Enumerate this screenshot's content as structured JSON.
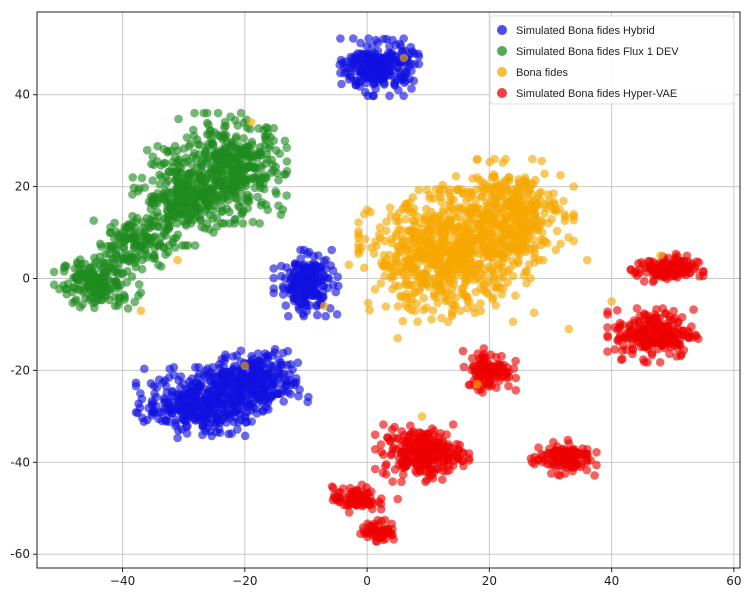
{
  "chart_data": {
    "type": "scatter",
    "title": "",
    "xlabel": "",
    "ylabel": "",
    "xlim": [
      -54,
      61
    ],
    "ylim": [
      -63,
      58
    ],
    "xticks": [
      -40,
      -20,
      0,
      20,
      40,
      60
    ],
    "yticks": [
      40,
      20,
      0,
      -20,
      -40,
      -60
    ],
    "tick_labels": {
      "x": [
        "−40",
        "−20",
        "0",
        "20",
        "40",
        "60"
      ],
      "y": [
        "40",
        "20",
        "0",
        "-20",
        "-40",
        "-60"
      ]
    },
    "grid": true,
    "legend_position": "top-right",
    "series": [
      {
        "name": "Simulated Bona fides Hybrid",
        "color": "#1010e0",
        "clusters": [
          {
            "cx": 2,
            "cy": 46,
            "sx": 2.7,
            "sy": 2.6,
            "n": 260
          },
          {
            "cx": -10,
            "cy": -1,
            "sx": 2.2,
            "sy": 3.0,
            "n": 200
          },
          {
            "cx": -27,
            "cy": -27,
            "sx": 4.5,
            "sy": 3.2,
            "n": 380
          },
          {
            "cx": -18,
            "cy": -22,
            "sx": 3.5,
            "sy": 2.8,
            "n": 260
          }
        ]
      },
      {
        "name": "Simulated Bona fides Flux 1 DEV",
        "color": "#1e8a1e",
        "clusters": [
          {
            "cx": -44,
            "cy": -1,
            "sx": 3.0,
            "sy": 2.6,
            "n": 180
          },
          {
            "cx": -38,
            "cy": 8,
            "sx": 2.8,
            "sy": 2.8,
            "n": 140
          },
          {
            "cx": -30,
            "cy": 18,
            "sx": 3.5,
            "sy": 4.5,
            "n": 280
          },
          {
            "cx": -22,
            "cy": 24,
            "sx": 4.2,
            "sy": 5.0,
            "n": 380
          }
        ]
      },
      {
        "name": "Bona fides",
        "color": "#f5a800",
        "clusters": [
          {
            "cx": 13,
            "cy": 5,
            "sx": 6.0,
            "sy": 6.0,
            "n": 700
          },
          {
            "cx": 23,
            "cy": 14,
            "sx": 4.5,
            "sy": 5.0,
            "n": 380
          }
        ]
      },
      {
        "name": "Simulated Bona fides Hyper-VAE",
        "color": "#ee0000",
        "clusters": [
          {
            "cx": 49,
            "cy": 2,
            "sx": 2.5,
            "sy": 1.4,
            "n": 130
          },
          {
            "cx": 47,
            "cy": -12,
            "sx": 3.2,
            "sy": 2.6,
            "n": 230
          },
          {
            "cx": 20,
            "cy": -20,
            "sx": 1.8,
            "sy": 2.0,
            "n": 120
          },
          {
            "cx": 9,
            "cy": -38,
            "sx": 3.2,
            "sy": 2.6,
            "n": 260
          },
          {
            "cx": 32,
            "cy": -39,
            "sx": 2.3,
            "sy": 1.6,
            "n": 130
          },
          {
            "cx": -2,
            "cy": -48,
            "sx": 1.8,
            "sy": 1.3,
            "n": 80
          },
          {
            "cx": 2,
            "cy": -55,
            "sx": 1.4,
            "sy": 1.1,
            "n": 60
          }
        ]
      }
    ],
    "outliers": [
      {
        "series": 2,
        "x": -7,
        "y": -6
      },
      {
        "series": 2,
        "x": -37,
        "y": -7
      },
      {
        "series": 2,
        "x": -31,
        "y": 4
      },
      {
        "series": 2,
        "x": -20,
        "y": -19
      },
      {
        "series": 2,
        "x": 5,
        "y": -13
      },
      {
        "series": 2,
        "x": 40,
        "y": -5
      },
      {
        "series": 2,
        "x": 33,
        "y": -11
      },
      {
        "series": 2,
        "x": 18,
        "y": -23
      },
      {
        "series": 2,
        "x": 4,
        "y": 2
      },
      {
        "series": 2,
        "x": 48,
        "y": 5
      },
      {
        "series": 2,
        "x": 9,
        "y": -30
      },
      {
        "series": 2,
        "x": -19,
        "y": 34
      },
      {
        "series": 2,
        "x": 36,
        "y": 4
      },
      {
        "series": 2,
        "x": -3,
        "y": 3
      },
      {
        "series": 2,
        "x": 6,
        "y": 48
      },
      {
        "series": 0,
        "x": -8,
        "y": 5
      },
      {
        "series": 3,
        "x": 27,
        "y": -40
      },
      {
        "series": 3,
        "x": 5,
        "y": -48
      }
    ]
  }
}
